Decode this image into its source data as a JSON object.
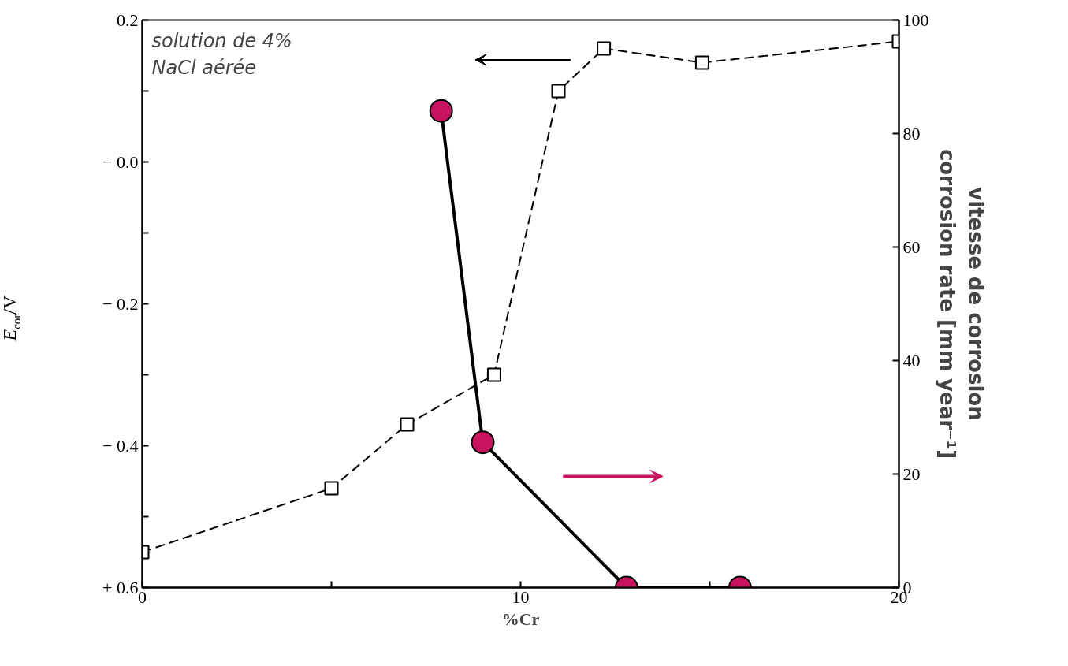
{
  "chart_data": {
    "type": "line",
    "xlabel": "%Cr",
    "ylabel": "E$_{cor}$/V",
    "y2label": "vitesse de corrosion\ncorrosion rate [mm year⁻¹]",
    "annotations": [
      "solution de 4%\nNaCl aérée"
    ],
    "xlim": [
      0,
      20
    ],
    "xticks": [
      0,
      {
        "value": 5,
        "label": null
      },
      10,
      {
        "value": 15,
        "label": null
      },
      20
    ],
    "ylim": [
      -0.6,
      0.2
    ],
    "yticks": [
      {
        "value": 0.2,
        "label": "0.2"
      },
      {
        "value": 0.1,
        "label": null
      },
      {
        "value": 0,
        "label": "− 0.0"
      },
      {
        "value": -0.1,
        "label": null
      },
      {
        "value": -0.2,
        "label": "− 0.2"
      },
      {
        "value": -0.3,
        "label": null
      },
      {
        "value": -0.4,
        "label": "− 0.4"
      },
      {
        "value": -0.5,
        "label": null
      },
      {
        "value": -0.6,
        "label": "+ 0.6"
      }
    ],
    "y2lim": [
      0,
      100
    ],
    "y2ticks": [
      0,
      20,
      40,
      60,
      80,
      100
    ],
    "grid": false,
    "series": [
      {
        "color": "#000000",
        "marker": "square",
        "line_style": "dashed",
        "x": [
          0,
          5,
          7,
          9.3,
          11,
          12.2,
          14.8,
          20
        ],
        "values": [
          -0.55,
          -0.46,
          -0.37,
          -0.3,
          0.1,
          0.16,
          0.14,
          0.17
        ]
      },
      {
        "color": "#c8145f",
        "marker": "circle",
        "line_style": "solid",
        "axis": "y2",
        "x": [
          7.9,
          9.0,
          12.8,
          15.8
        ],
        "values": [
          84,
          25.6,
          0,
          0
        ]
      }
    ]
  }
}
